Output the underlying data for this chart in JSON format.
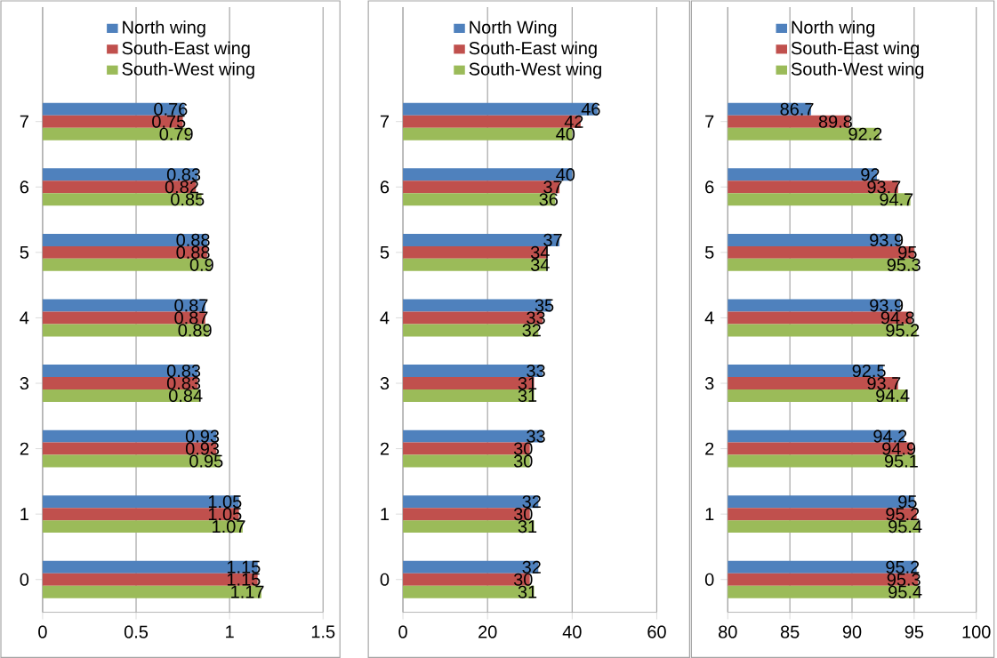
{
  "chart_data": [
    {
      "type": "bar",
      "orientation": "horizontal",
      "categories": [
        "7",
        "6",
        "5",
        "4",
        "3",
        "2",
        "1",
        "0"
      ],
      "series": [
        {
          "name": "North wing",
          "color": "#4f81bd",
          "values": [
            0.76,
            0.83,
            0.88,
            0.87,
            0.83,
            0.93,
            1.05,
            1.15
          ]
        },
        {
          "name": "South-East wing",
          "color": "#c0504d",
          "values": [
            0.75,
            0.82,
            0.88,
            0.87,
            0.83,
            0.93,
            1.05,
            1.15
          ]
        },
        {
          "name": "South-West wing",
          "color": "#9bbb59",
          "values": [
            0.79,
            0.85,
            0.9,
            0.89,
            0.84,
            0.95,
            1.07,
            1.17
          ]
        }
      ],
      "xlim": [
        0,
        1.5
      ],
      "xticks": [
        0,
        0.5,
        1,
        1.5
      ],
      "data_labels": true,
      "legend": "top",
      "grid": "x"
    },
    {
      "type": "bar",
      "orientation": "horizontal",
      "categories": [
        "7",
        "6",
        "5",
        "4",
        "3",
        "2",
        "1",
        "0"
      ],
      "series": [
        {
          "name": "North Wing",
          "color": "#4f81bd",
          "values": [
            46,
            40,
            37,
            35,
            33,
            33,
            32,
            32
          ]
        },
        {
          "name": "South-East wing",
          "color": "#c0504d",
          "values": [
            42,
            37,
            34,
            33,
            31,
            30,
            30,
            30
          ]
        },
        {
          "name": "South-West wing",
          "color": "#9bbb59",
          "values": [
            40,
            36,
            34,
            32,
            31,
            30,
            31,
            31
          ]
        }
      ],
      "xlim": [
        0,
        60
      ],
      "xticks": [
        0,
        20,
        40,
        60
      ],
      "data_labels": true,
      "legend": "top",
      "grid": "x"
    },
    {
      "type": "bar",
      "orientation": "horizontal",
      "categories": [
        "7",
        "6",
        "5",
        "4",
        "3",
        "2",
        "1",
        "0"
      ],
      "series": [
        {
          "name": "North wing",
          "color": "#4f81bd",
          "values": [
            86.7,
            92,
            93.9,
            93.9,
            92.5,
            94.2,
            95,
            95.2
          ]
        },
        {
          "name": "South-East wing",
          "color": "#c0504d",
          "values": [
            89.8,
            93.7,
            95,
            94.8,
            93.7,
            94.9,
            95.2,
            95.3
          ]
        },
        {
          "name": "South-West wing",
          "color": "#9bbb59",
          "values": [
            92.2,
            94.7,
            95.3,
            95.2,
            94.4,
            95.1,
            95.4,
            95.4
          ]
        }
      ],
      "xlim": [
        80,
        100
      ],
      "xticks": [
        80,
        85,
        90,
        95,
        100
      ],
      "data_labels": true,
      "legend": "top",
      "grid": "x"
    }
  ]
}
